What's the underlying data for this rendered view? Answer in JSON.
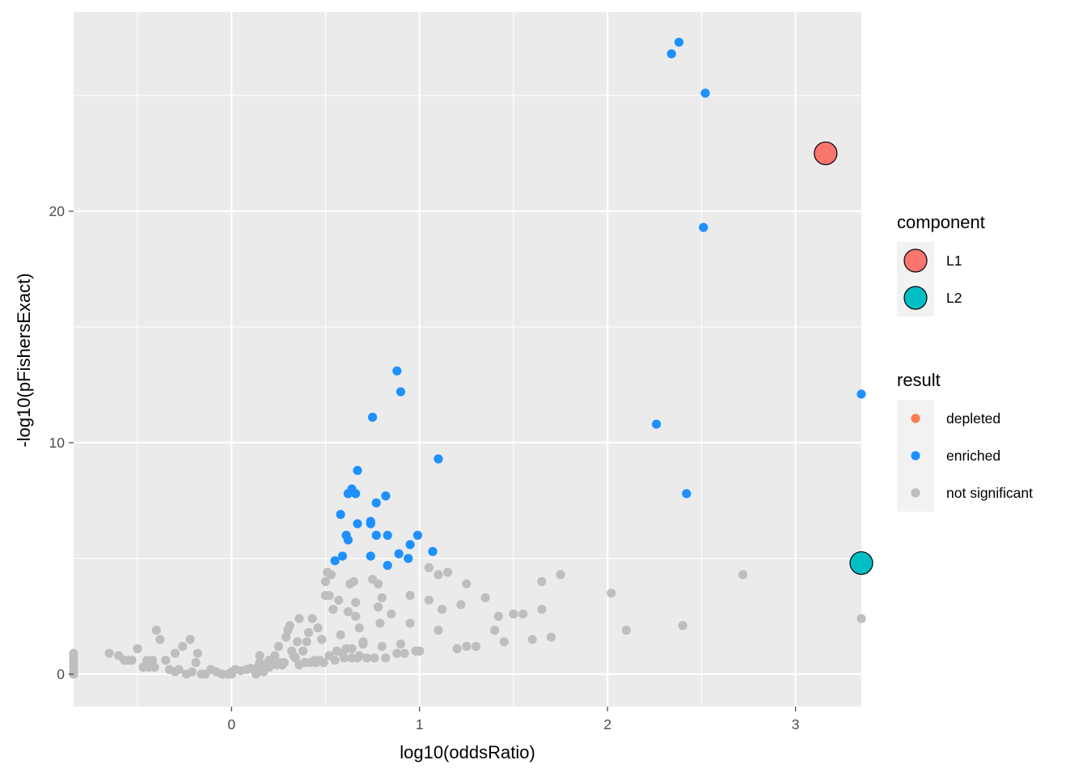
{
  "chart_data": {
    "type": "scatter",
    "title": "",
    "xlabel": "log10(oddsRatio)",
    "ylabel": "-log10(pFishersExact)",
    "xlim": [
      -0.84,
      3.35
    ],
    "ylim": [
      -1.4,
      28.6
    ],
    "x_ticks": [
      0,
      1,
      2,
      3
    ],
    "x_tick_labels": [
      "0",
      "1",
      "2",
      "3"
    ],
    "y_ticks": [
      0,
      10,
      20
    ],
    "y_tick_labels": [
      "0",
      "10",
      "20"
    ],
    "grid": true,
    "panel_background": "#ebebeb",
    "legend_position": "right",
    "colors": {
      "depleted": "#f8766d",
      "enriched": "#1e90ff",
      "not_significant": "#bebebe",
      "L1": "#f8766d",
      "L2": "#00bfc4"
    },
    "legends": [
      {
        "title": "component",
        "entries": [
          {
            "label": "L1",
            "color": "#f8766d"
          },
          {
            "label": "L2",
            "color": "#00bfc4"
          }
        ]
      },
      {
        "title": "result",
        "entries": [
          {
            "label": "depleted",
            "color": "#fb7b52"
          },
          {
            "label": "enriched",
            "color": "#1e90ff"
          },
          {
            "label": "not significant",
            "color": "#bebebe"
          }
        ]
      }
    ],
    "series": [
      {
        "name": "not significant",
        "color": "#bebebe",
        "points": [
          [
            -0.84,
            0.9
          ],
          [
            -0.84,
            0.7
          ],
          [
            -0.84,
            0.5
          ],
          [
            -0.84,
            0.3
          ],
          [
            -0.84,
            0.1
          ],
          [
            -0.84,
            0.0
          ],
          [
            -0.65,
            0.9
          ],
          [
            -0.6,
            0.8
          ],
          [
            -0.57,
            0.6
          ],
          [
            -0.55,
            0.6
          ],
          [
            -0.53,
            0.6
          ],
          [
            -0.5,
            1.1
          ],
          [
            -0.47,
            0.3
          ],
          [
            -0.44,
            0.3
          ],
          [
            -0.45,
            0.6
          ],
          [
            -0.42,
            0.6
          ],
          [
            -0.41,
            0.3
          ],
          [
            -0.4,
            1.9
          ],
          [
            -0.38,
            1.5
          ],
          [
            -0.35,
            0.6
          ],
          [
            -0.33,
            0.2
          ],
          [
            -0.3,
            0.1
          ],
          [
            -0.3,
            0.9
          ],
          [
            -0.28,
            0.2
          ],
          [
            -0.26,
            1.2
          ],
          [
            -0.24,
            0.0
          ],
          [
            -0.22,
            1.5
          ],
          [
            -0.21,
            0.1
          ],
          [
            -0.19,
            0.5
          ],
          [
            -0.18,
            0.9
          ],
          [
            -0.16,
            0.0
          ],
          [
            -0.14,
            0.0
          ],
          [
            -0.11,
            0.2
          ],
          [
            -0.08,
            0.1
          ],
          [
            -0.05,
            0.0
          ],
          [
            -0.02,
            0.0
          ],
          [
            0.0,
            0.0
          ],
          [
            0.0,
            0.1
          ],
          [
            0.02,
            0.2
          ],
          [
            0.05,
            0.15
          ],
          [
            0.08,
            0.2
          ],
          [
            0.1,
            0.25
          ],
          [
            0.12,
            0.2
          ],
          [
            0.14,
            0.3
          ],
          [
            0.13,
            0.0
          ],
          [
            0.15,
            0.5
          ],
          [
            0.15,
            0.8
          ],
          [
            0.17,
            0.1
          ],
          [
            0.18,
            0.4
          ],
          [
            0.2,
            0.6
          ],
          [
            0.2,
            0.3
          ],
          [
            0.22,
            0.5
          ],
          [
            0.23,
            0.8
          ],
          [
            0.24,
            0.4
          ],
          [
            0.25,
            1.2
          ],
          [
            0.26,
            0.5
          ],
          [
            0.27,
            0.4
          ],
          [
            0.28,
            0.5
          ],
          [
            0.29,
            1.6
          ],
          [
            0.3,
            1.9
          ],
          [
            0.31,
            2.1
          ],
          [
            0.32,
            1.0
          ],
          [
            0.33,
            0.8
          ],
          [
            0.34,
            0.7
          ],
          [
            0.35,
            1.4
          ],
          [
            0.36,
            2.4
          ],
          [
            0.36,
            0.4
          ],
          [
            0.38,
            1.0
          ],
          [
            0.39,
            0.5
          ],
          [
            0.4,
            1.4
          ],
          [
            0.41,
            1.8
          ],
          [
            0.42,
            0.5
          ],
          [
            0.43,
            2.4
          ],
          [
            0.44,
            0.6
          ],
          [
            0.45,
            0.5
          ],
          [
            0.46,
            2.0
          ],
          [
            0.47,
            0.6
          ],
          [
            0.48,
            1.5
          ],
          [
            0.49,
            0.5
          ],
          [
            0.5,
            3.4
          ],
          [
            0.5,
            4.0
          ],
          [
            0.51,
            4.4
          ],
          [
            0.52,
            0.8
          ],
          [
            0.52,
            3.4
          ],
          [
            0.53,
            4.3
          ],
          [
            0.54,
            2.8
          ],
          [
            0.55,
            0.6
          ],
          [
            0.56,
            1.0
          ],
          [
            0.57,
            3.2
          ],
          [
            0.58,
            1.7
          ],
          [
            0.59,
            0.9
          ],
          [
            0.6,
            0.7
          ],
          [
            0.61,
            1.1
          ],
          [
            0.62,
            2.7
          ],
          [
            0.63,
            3.9
          ],
          [
            0.64,
            1.1
          ],
          [
            0.64,
            0.7
          ],
          [
            0.65,
            4.0
          ],
          [
            0.66,
            2.5
          ],
          [
            0.66,
            3.1
          ],
          [
            0.67,
            0.7
          ],
          [
            0.68,
            2.0
          ],
          [
            0.68,
            0.8
          ],
          [
            0.7,
            1.4
          ],
          [
            0.7,
            1.3
          ],
          [
            0.72,
            0.7
          ],
          [
            0.75,
            4.1
          ],
          [
            0.76,
            0.7
          ],
          [
            0.78,
            3.9
          ],
          [
            0.78,
            2.9
          ],
          [
            0.8,
            3.3
          ],
          [
            0.79,
            2.2
          ],
          [
            0.8,
            1.2
          ],
          [
            0.82,
            0.7
          ],
          [
            0.85,
            2.6
          ],
          [
            0.88,
            0.9
          ],
          [
            0.9,
            1.3
          ],
          [
            0.92,
            0.9
          ],
          [
            0.95,
            3.4
          ],
          [
            0.95,
            2.2
          ],
          [
            0.98,
            1.0
          ],
          [
            1.0,
            1.0
          ],
          [
            1.05,
            4.6
          ],
          [
            1.05,
            3.2
          ],
          [
            1.1,
            1.9
          ],
          [
            1.1,
            4.3
          ],
          [
            1.12,
            2.8
          ],
          [
            1.15,
            4.4
          ],
          [
            1.2,
            1.1
          ],
          [
            1.22,
            3.0
          ],
          [
            1.25,
            3.9
          ],
          [
            1.25,
            1.2
          ],
          [
            1.3,
            1.2
          ],
          [
            1.35,
            3.3
          ],
          [
            1.4,
            1.9
          ],
          [
            1.42,
            2.5
          ],
          [
            1.45,
            1.4
          ],
          [
            1.5,
            2.6
          ],
          [
            1.55,
            2.6
          ],
          [
            1.6,
            1.5
          ],
          [
            1.65,
            4.0
          ],
          [
            1.65,
            2.8
          ],
          [
            1.7,
            1.6
          ],
          [
            1.75,
            4.3
          ],
          [
            2.02,
            3.5
          ],
          [
            2.1,
            1.9
          ],
          [
            2.4,
            2.1
          ],
          [
            2.72,
            4.3
          ],
          [
            3.35,
            2.4
          ]
        ]
      },
      {
        "name": "enriched",
        "color": "#1e90ff",
        "points": [
          [
            2.38,
            27.3
          ],
          [
            2.34,
            26.8
          ],
          [
            2.52,
            25.1
          ],
          [
            2.51,
            19.3
          ],
          [
            3.35,
            12.1
          ],
          [
            2.26,
            10.8
          ],
          [
            2.42,
            7.8
          ],
          [
            0.88,
            13.1
          ],
          [
            0.9,
            12.2
          ],
          [
            0.75,
            11.1
          ],
          [
            1.1,
            9.3
          ],
          [
            0.67,
            8.8
          ],
          [
            0.64,
            8.0
          ],
          [
            0.62,
            7.8
          ],
          [
            0.66,
            7.8
          ],
          [
            0.82,
            7.7
          ],
          [
            0.77,
            7.4
          ],
          [
            0.58,
            6.9
          ],
          [
            0.74,
            6.6
          ],
          [
            0.67,
            6.5
          ],
          [
            0.74,
            6.5
          ],
          [
            0.61,
            6.0
          ],
          [
            0.62,
            5.8
          ],
          [
            0.77,
            6.0
          ],
          [
            0.83,
            6.0
          ],
          [
            0.99,
            6.0
          ],
          [
            0.95,
            5.6
          ],
          [
            0.55,
            4.9
          ],
          [
            0.59,
            5.1
          ],
          [
            0.74,
            5.1
          ],
          [
            0.89,
            5.2
          ],
          [
            0.94,
            5.0
          ],
          [
            1.07,
            5.3
          ],
          [
            0.83,
            4.7
          ]
        ]
      },
      {
        "name": "L1",
        "color": "#f8766d",
        "points": [
          [
            3.16,
            22.5
          ]
        ]
      },
      {
        "name": "L2",
        "color": "#00bfc4",
        "points": [
          [
            3.35,
            4.8
          ]
        ]
      }
    ]
  }
}
